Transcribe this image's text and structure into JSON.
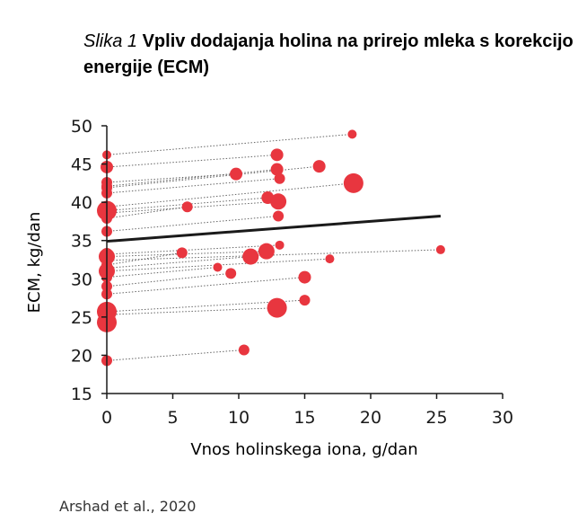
{
  "figure": {
    "caption_label": "Slika 1",
    "caption_text": "Vpliv dodajanja holina na prirejo mleka s korekcijo energije (ECM)",
    "source": "Arshad et al., 2020"
  },
  "colors": {
    "point": "#e8363f",
    "trend": "#1a1a1a",
    "connector": "#666666"
  },
  "chart_data": {
    "type": "scatter",
    "title": "",
    "xlabel": "Vnos holinskega iona, g/dan",
    "ylabel": "ECM, kg/dan",
    "xlim": [
      0,
      30
    ],
    "ylim": [
      15,
      50
    ],
    "xticks": [
      0,
      5,
      10,
      15,
      20,
      25,
      30
    ],
    "yticks": [
      15,
      20,
      25,
      30,
      35,
      40,
      45,
      50
    ],
    "grid": false,
    "legend": "none",
    "pairs": [
      {
        "control": {
          "x": 0,
          "y": 46.2,
          "r": 5
        },
        "treatment": {
          "x": 18.6,
          "y": 48.9,
          "r": 5
        }
      },
      {
        "control": {
          "x": 0,
          "y": 44.6,
          "r": 7
        },
        "treatment": {
          "x": 12.9,
          "y": 46.2,
          "r": 7
        }
      },
      {
        "control": {
          "x": 0,
          "y": 42.6,
          "r": 6
        },
        "treatment": {
          "x": 9.8,
          "y": 43.7,
          "r": 7
        }
      },
      {
        "control": {
          "x": 0,
          "y": 42.1,
          "r": 6
        },
        "treatment": {
          "x": 12.9,
          "y": 44.3,
          "r": 7
        }
      },
      {
        "control": {
          "x": 0,
          "y": 41.9,
          "r": 6
        },
        "treatment": {
          "x": 16.1,
          "y": 44.7,
          "r": 7
        }
      },
      {
        "control": {
          "x": 0,
          "y": 41.2,
          "r": 6
        },
        "treatment": {
          "x": 13.1,
          "y": 43.1,
          "r": 6
        }
      },
      {
        "control": {
          "x": 0,
          "y": 39.4,
          "r": 6
        },
        "treatment": {
          "x": 18.7,
          "y": 42.5,
          "r": 11
        }
      },
      {
        "control": {
          "x": 0,
          "y": 38.9,
          "r": 11
        },
        "treatment": {
          "x": 12.2,
          "y": 40.6,
          "r": 7
        }
      },
      {
        "control": {
          "x": 0,
          "y": 38.6,
          "r": 6
        },
        "treatment": {
          "x": 13.0,
          "y": 40.1,
          "r": 9
        }
      },
      {
        "control": {
          "x": 0,
          "y": 37.9,
          "r": 6
        },
        "treatment": {
          "x": 6.1,
          "y": 39.4,
          "r": 6
        }
      },
      {
        "control": {
          "x": 0,
          "y": 36.2,
          "r": 6
        },
        "treatment": {
          "x": 13.0,
          "y": 38.2,
          "r": 6
        }
      },
      {
        "control": {
          "x": 0,
          "y": 33.2,
          "r": 7
        },
        "treatment": {
          "x": 13.1,
          "y": 34.4,
          "r": 5
        }
      },
      {
        "control": {
          "x": 0,
          "y": 32.9,
          "r": 9
        },
        "treatment": {
          "x": 12.1,
          "y": 33.6,
          "r": 9
        }
      },
      {
        "control": {
          "x": 0,
          "y": 32.4,
          "r": 6
        },
        "treatment": {
          "x": 25.3,
          "y": 33.8,
          "r": 5
        }
      },
      {
        "control": {
          "x": 0,
          "y": 31.8,
          "r": 6
        },
        "treatment": {
          "x": 5.7,
          "y": 33.4,
          "r": 6
        }
      },
      {
        "control": {
          "x": 0,
          "y": 31.4,
          "r": 6
        },
        "treatment": {
          "x": 10.9,
          "y": 32.9,
          "r": 9
        }
      },
      {
        "control": {
          "x": 0,
          "y": 31.0,
          "r": 9
        },
        "treatment": {
          "x": 16.9,
          "y": 32.6,
          "r": 5
        }
      },
      {
        "control": {
          "x": 0,
          "y": 30.2,
          "r": 6
        },
        "treatment": {
          "x": 8.4,
          "y": 31.5,
          "r": 5
        }
      },
      {
        "control": {
          "x": 0,
          "y": 29.0,
          "r": 6
        },
        "treatment": {
          "x": 9.4,
          "y": 30.7,
          "r": 6
        }
      },
      {
        "control": {
          "x": 0,
          "y": 28.0,
          "r": 6
        },
        "treatment": {
          "x": 15.0,
          "y": 30.2,
          "r": 7
        }
      },
      {
        "control": {
          "x": 0,
          "y": 25.7,
          "r": 11
        },
        "treatment": {
          "x": 15.0,
          "y": 27.2,
          "r": 6
        }
      },
      {
        "control": {
          "x": 0,
          "y": 25.3,
          "r": 6
        },
        "treatment": {
          "x": 12.9,
          "y": 26.2,
          "r": 11
        }
      },
      {
        "control": {
          "x": 0,
          "y": 24.3,
          "r": 11
        },
        "treatment": null
      },
      {
        "control": {
          "x": 0,
          "y": 19.3,
          "r": 6
        },
        "treatment": {
          "x": 10.4,
          "y": 20.7,
          "r": 6
        }
      }
    ],
    "trend_line": {
      "x": [
        0,
        25.3
      ],
      "y": [
        34.9,
        38.2
      ]
    }
  }
}
